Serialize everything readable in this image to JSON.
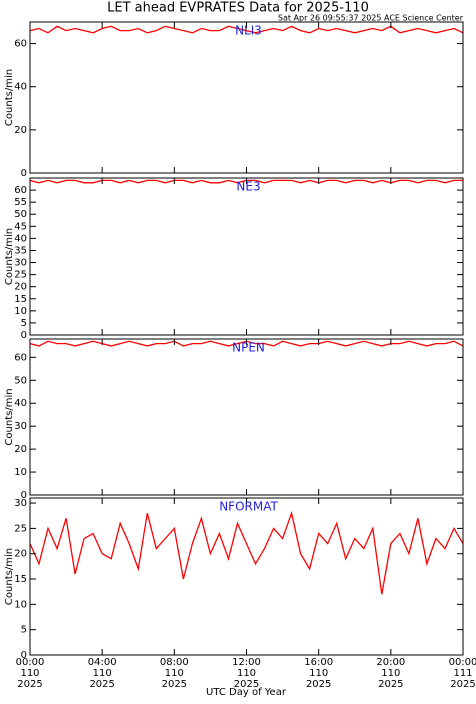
{
  "title": "LET ahead EVPRATES Data for 2025-110",
  "timestamp": "Sat Apr 26 09:55:37 2025 ACE Science Center",
  "x_label": "UTC Day of Year",
  "chart_data": [
    {
      "type": "line",
      "panel_label": "NLI3",
      "y_label": "Counts/min",
      "color": "#ff0000",
      "ylim": [
        0,
        70
      ],
      "yticks": [
        0,
        20,
        40,
        60
      ],
      "x": [
        0,
        0.5,
        1,
        1.5,
        2,
        2.5,
        3,
        3.5,
        4,
        4.5,
        5,
        5.5,
        6,
        6.5,
        7,
        7.5,
        8,
        8.5,
        9,
        9.5,
        10,
        10.5,
        11,
        11.5,
        12,
        12.5,
        13,
        13.5,
        14,
        14.5,
        15,
        15.5,
        16,
        16.5,
        17,
        17.5,
        18,
        18.5,
        19,
        19.5,
        20,
        20.5,
        21,
        21.5,
        22,
        22.5,
        23,
        23.5,
        24
      ],
      "values": [
        66,
        67,
        65,
        68,
        66,
        67,
        66,
        65,
        67,
        68,
        66,
        66,
        67,
        65,
        66,
        68,
        67,
        66,
        65,
        67,
        66,
        66,
        68,
        67,
        66,
        65,
        66,
        67,
        66,
        68,
        66,
        65,
        67,
        66,
        67,
        66,
        65,
        66,
        67,
        66,
        68,
        65,
        66,
        67,
        66,
        65,
        66,
        67,
        65
      ]
    },
    {
      "type": "line",
      "panel_label": "NE3",
      "y_label": "Counts/min",
      "color": "#ff0000",
      "ylim": [
        0,
        65
      ],
      "yticks": [
        0,
        5,
        10,
        15,
        20,
        25,
        30,
        35,
        40,
        45,
        50,
        55,
        60
      ],
      "x": [
        0,
        0.5,
        1,
        1.5,
        2,
        2.5,
        3,
        3.5,
        4,
        4.5,
        5,
        5.5,
        6,
        6.5,
        7,
        7.5,
        8,
        8.5,
        9,
        9.5,
        10,
        10.5,
        11,
        11.5,
        12,
        12.5,
        13,
        13.5,
        14,
        14.5,
        15,
        15.5,
        16,
        16.5,
        17,
        17.5,
        18,
        18.5,
        19,
        19.5,
        20,
        20.5,
        21,
        21.5,
        22,
        22.5,
        23,
        23.5,
        24
      ],
      "values": [
        64,
        63,
        64,
        63,
        64,
        64,
        63,
        63,
        64,
        64,
        63,
        64,
        63,
        64,
        64,
        63,
        64,
        64,
        63,
        64,
        63,
        63,
        64,
        63,
        64,
        64,
        63,
        64,
        64,
        64,
        63,
        64,
        63,
        64,
        64,
        63,
        64,
        64,
        63,
        64,
        63,
        64,
        64,
        63,
        64,
        64,
        63,
        64,
        64
      ]
    },
    {
      "type": "line",
      "panel_label": "NPEN",
      "y_label": "Counts/min",
      "color": "#ff0000",
      "ylim": [
        0,
        68
      ],
      "yticks": [
        0,
        10,
        20,
        30,
        40,
        50,
        60
      ],
      "x": [
        0,
        0.5,
        1,
        1.5,
        2,
        2.5,
        3,
        3.5,
        4,
        4.5,
        5,
        5.5,
        6,
        6.5,
        7,
        7.5,
        8,
        8.5,
        9,
        9.5,
        10,
        10.5,
        11,
        11.5,
        12,
        12.5,
        13,
        13.5,
        14,
        14.5,
        15,
        15.5,
        16,
        16.5,
        17,
        17.5,
        18,
        18.5,
        19,
        19.5,
        20,
        20.5,
        21,
        21.5,
        22,
        22.5,
        23,
        23.5,
        24
      ],
      "values": [
        66,
        65,
        67,
        66,
        66,
        65,
        66,
        67,
        66,
        65,
        66,
        67,
        66,
        65,
        66,
        66,
        67,
        65,
        66,
        66,
        67,
        66,
        65,
        66,
        67,
        66,
        66,
        65,
        67,
        66,
        65,
        66,
        66,
        67,
        66,
        65,
        66,
        67,
        66,
        65,
        66,
        66,
        67,
        66,
        65,
        66,
        66,
        67,
        65
      ]
    },
    {
      "type": "line",
      "panel_label": "NFORMAT",
      "y_label": "Counts/min",
      "color": "#ff0000",
      "ylim": [
        0,
        31
      ],
      "yticks": [
        0,
        5,
        10,
        15,
        20,
        25,
        30
      ],
      "xlim": [
        0,
        24
      ],
      "xticks": [
        {
          "value": 0,
          "label": "00:00\n110\n2025"
        },
        {
          "value": 4,
          "label": "04:00\n110\n2025"
        },
        {
          "value": 8,
          "label": "08:00\n110\n2025"
        },
        {
          "value": 12,
          "label": "12:00\n110\n2025"
        },
        {
          "value": 16,
          "label": "16:00\n110\n2025"
        },
        {
          "value": 20,
          "label": "20:00\n110\n2025"
        },
        {
          "value": 24,
          "label": "00:00\n111\n2025"
        }
      ],
      "x": [
        0,
        0.5,
        1,
        1.5,
        2,
        2.5,
        3,
        3.5,
        4,
        4.5,
        5,
        5.5,
        6,
        6.5,
        7,
        7.5,
        8,
        8.5,
        9,
        9.5,
        10,
        10.5,
        11,
        11.5,
        12,
        12.5,
        13,
        13.5,
        14,
        14.5,
        15,
        15.5,
        16,
        16.5,
        17,
        17.5,
        18,
        18.5,
        19,
        19.5,
        20,
        20.5,
        21,
        21.5,
        22,
        22.5,
        23,
        23.5,
        24
      ],
      "values": [
        22,
        18,
        25,
        21,
        27,
        16,
        23,
        24,
        20,
        19,
        26,
        22,
        17,
        28,
        21,
        23,
        25,
        15,
        22,
        27,
        20,
        24,
        19,
        26,
        22,
        18,
        21,
        25,
        23,
        28,
        20,
        17,
        24,
        22,
        26,
        19,
        23,
        21,
        25,
        12,
        22,
        24,
        20,
        27,
        18,
        23,
        21,
        25,
        22
      ]
    }
  ]
}
